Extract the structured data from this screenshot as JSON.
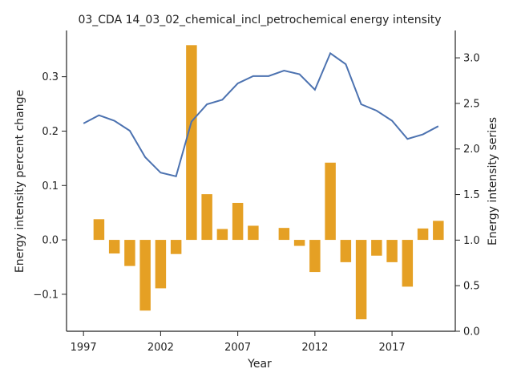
{
  "chart_data": {
    "type": "bar+line",
    "title": "03_CDA 14_03_02_chemical_incl_petrochemical energy intensity",
    "xlabel": "Year",
    "ylabel_left": "Energy intensity percent change",
    "ylabel_right": "Energy intensity series",
    "x": [
      1997,
      1998,
      1999,
      2000,
      2001,
      2002,
      2003,
      2004,
      2005,
      2006,
      2007,
      2008,
      2009,
      2010,
      2011,
      2012,
      2013,
      2014,
      2015,
      2016,
      2017,
      2018,
      2019,
      2020
    ],
    "bar_series": {
      "values": [
        null,
        0.038,
        -0.025,
        -0.048,
        -0.13,
        -0.089,
        -0.026,
        0.358,
        0.084,
        0.02,
        0.068,
        0.026,
        0.0,
        0.022,
        -0.011,
        -0.059,
        0.142,
        -0.041,
        -0.146,
        -0.029,
        -0.041,
        -0.086,
        0.021,
        0.035
      ],
      "color": "#e5a024"
    },
    "line_series": {
      "values": [
        2.28,
        2.37,
        2.31,
        2.2,
        1.91,
        1.74,
        1.7,
        2.3,
        2.49,
        2.54,
        2.72,
        2.8,
        2.8,
        2.86,
        2.82,
        2.65,
        3.05,
        2.93,
        2.49,
        2.42,
        2.31,
        2.11,
        2.16,
        2.25
      ],
      "color": "#4c72b0"
    },
    "x_ticks": [
      "1997",
      "2002",
      "2007",
      "2012",
      "2017"
    ],
    "y_left_ticks": [
      "−0.1",
      "0.0",
      "0.1",
      "0.2",
      "0.3"
    ],
    "y_right_ticks": [
      "0.0",
      "0.5",
      "1.0",
      "1.5",
      "2.0",
      "2.5",
      "3.0"
    ],
    "xlim": [
      1995.9,
      2021.1
    ],
    "ylim_left": [
      -0.168,
      0.385
    ],
    "ylim_right": [
      0.0,
      3.3
    ],
    "grid": false
  }
}
